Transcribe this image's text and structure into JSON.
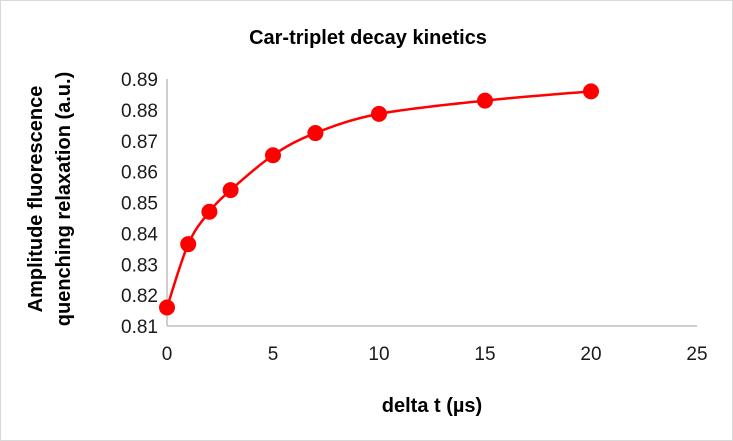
{
  "chart_data": {
    "type": "scatter",
    "title": "Car-triplet decay kinetics",
    "xlabel": "delta t (µs)",
    "ylabel_lines": [
      "Amplitude fluorescence",
      "quenching relaxation (a.u.)"
    ],
    "xlim": [
      0,
      25
    ],
    "ylim": [
      0.81,
      0.89
    ],
    "xticks": [
      0,
      5,
      10,
      15,
      20,
      25
    ],
    "yticks": [
      "0.81",
      "0.82",
      "0.83",
      "0.84",
      "0.85",
      "0.86",
      "0.87",
      "0.88",
      "0.89"
    ],
    "grid": false,
    "series": [
      {
        "color": "#ff0000",
        "smooth_line": true,
        "points": [
          {
            "x": 0,
            "y": 0.816
          },
          {
            "x": 1,
            "y": 0.8365
          },
          {
            "x": 2,
            "y": 0.847
          },
          {
            "x": 3,
            "y": 0.854
          },
          {
            "x": 5,
            "y": 0.8653
          },
          {
            "x": 7,
            "y": 0.8725
          },
          {
            "x": 10,
            "y": 0.8787
          },
          {
            "x": 15,
            "y": 0.883
          },
          {
            "x": 20,
            "y": 0.886
          }
        ]
      }
    ]
  }
}
